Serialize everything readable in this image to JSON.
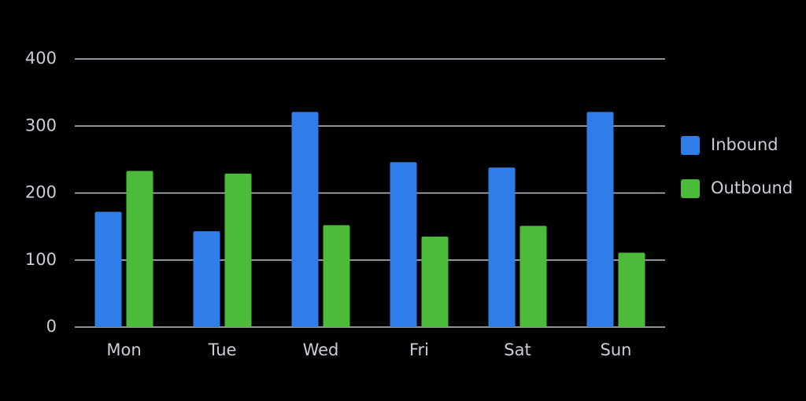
{
  "chart_data": {
    "type": "bar",
    "categories": [
      "Mon",
      "Tue",
      "Wed",
      "Fri",
      "Sat",
      "Sun"
    ],
    "series": [
      {
        "name": "Inbound",
        "color": "#2f7de8",
        "values": [
          172,
          143,
          321,
          246,
          238,
          321
        ]
      },
      {
        "name": "Outbound",
        "color": "#4cbb3a",
        "values": [
          233,
          229,
          152,
          135,
          151,
          111
        ]
      }
    ],
    "ylim": [
      0,
      400
    ],
    "yticks": [
      0,
      100,
      200,
      300,
      400
    ],
    "grid": true,
    "legend": "right"
  }
}
